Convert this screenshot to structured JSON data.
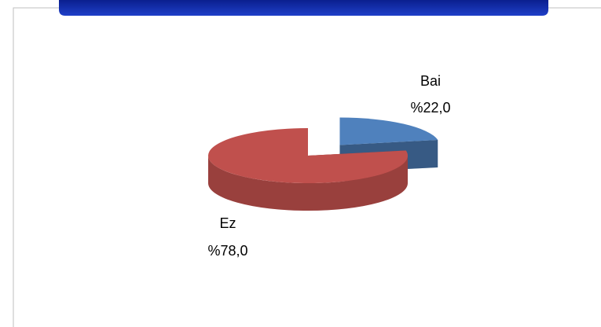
{
  "chart_data": {
    "type": "pie",
    "categories": [
      "Bai",
      "Ez"
    ],
    "values": [
      22,
      78
    ],
    "value_labels": [
      "%22,0",
      "%78,0"
    ],
    "colors": [
      "#4f81bd",
      "#c0504d"
    ]
  }
}
